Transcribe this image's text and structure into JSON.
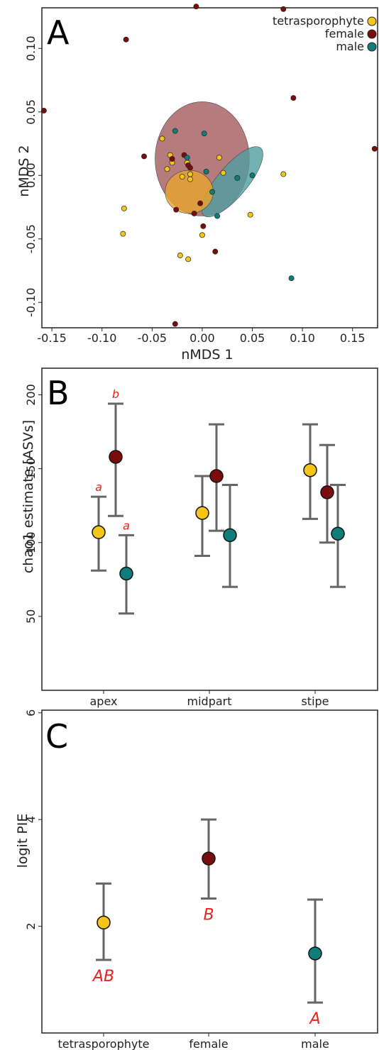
{
  "colors": {
    "tetrasporophyte": "#f5c518",
    "female": "#7a0c0c",
    "male": "#0f7d7a",
    "errorbar": "#666666",
    "signif": "#e8231f"
  },
  "chart_data": [
    {
      "panel": "A",
      "type": "scatter",
      "xlabel": "nMDS 1",
      "ylabel": "nMDS 2",
      "xlim": [
        -0.16,
        0.175
      ],
      "ylim": [
        -0.12,
        0.132
      ],
      "x_ticks": [
        -0.15,
        -0.1,
        -0.05,
        0.0,
        0.05,
        0.1,
        0.15
      ],
      "x_tick_labels": [
        "-0.15",
        "-0.10",
        "-0.05",
        "0.00",
        "0.05",
        "0.10",
        "0.15"
      ],
      "y_ticks": [
        -0.1,
        -0.05,
        0.0,
        0.05,
        0.1
      ],
      "y_tick_labels": [
        "-0.10",
        "-0.05",
        "0.00",
        "0.05",
        "0.10"
      ],
      "legend_position": "top-right",
      "series": [
        {
          "name": "tetrasporophyte",
          "points": [
            [
              -0.078,
              -0.026
            ],
            [
              -0.079,
              -0.046
            ],
            [
              -0.04,
              0.029
            ],
            [
              -0.032,
              0.016
            ],
            [
              -0.03,
              0.01
            ],
            [
              -0.035,
              0.005
            ],
            [
              -0.02,
              -0.001
            ],
            [
              -0.012,
              -0.003
            ],
            [
              -0.015,
              0.01
            ],
            [
              -0.012,
              0.001
            ],
            [
              0.017,
              0.014
            ],
            [
              0.021,
              0.002
            ],
            [
              0.081,
              0.001
            ],
            [
              0.048,
              -0.031
            ],
            [
              -0.022,
              -0.063
            ],
            [
              -0.014,
              -0.066
            ],
            [
              0.0,
              -0.047
            ]
          ]
        },
        {
          "name": "female",
          "points": [
            [
              -0.076,
              0.107
            ],
            [
              -0.158,
              0.051
            ],
            [
              -0.006,
              0.133
            ],
            [
              0.081,
              0.131
            ],
            [
              0.091,
              0.061
            ],
            [
              0.172,
              0.021
            ],
            [
              -0.058,
              0.015
            ],
            [
              -0.018,
              0.016
            ],
            [
              -0.03,
              0.013
            ],
            [
              -0.014,
              0.008
            ],
            [
              -0.012,
              0.006
            ],
            [
              -0.026,
              -0.027
            ],
            [
              -0.008,
              -0.03
            ],
            [
              -0.002,
              -0.022
            ],
            [
              0.001,
              -0.04
            ],
            [
              0.013,
              -0.06
            ],
            [
              -0.027,
              -0.117
            ]
          ]
        },
        {
          "name": "male",
          "points": [
            [
              -0.027,
              0.035
            ],
            [
              0.002,
              0.033
            ],
            [
              -0.015,
              0.014
            ],
            [
              0.004,
              0.003
            ],
            [
              0.035,
              -0.002
            ],
            [
              0.05,
              0.0
            ],
            [
              0.01,
              -0.013
            ],
            [
              0.015,
              -0.032
            ],
            [
              0.089,
              -0.081
            ]
          ]
        }
      ],
      "ellipses": [
        {
          "name": "female",
          "cx": 0.0,
          "cy": 0.013,
          "rx": 0.047,
          "ry": 0.045,
          "angle": 0
        },
        {
          "name": "male",
          "cx": 0.03,
          "cy": -0.005,
          "rx": 0.044,
          "ry": 0.012,
          "angle": -50
        },
        {
          "name": "tetrasporophyte",
          "cx": -0.013,
          "cy": -0.013,
          "rx": 0.024,
          "ry": 0.017,
          "angle": 0
        }
      ]
    },
    {
      "panel": "B",
      "type": "scatter",
      "ylabel": "chao1 estimate [ASVs]",
      "categories": [
        "apex",
        "midpart",
        "stipe"
      ],
      "ylim": [
        0,
        218
      ],
      "y_ticks": [
        50,
        100,
        150,
        200
      ],
      "series": [
        {
          "name": "tetrasporophyte",
          "values": [
            107,
            120,
            149
          ],
          "lower": [
            81,
            91,
            116
          ],
          "upper": [
            131,
            145,
            180
          ]
        },
        {
          "name": "female",
          "values": [
            158,
            145,
            134
          ],
          "lower": [
            118,
            108,
            100
          ],
          "upper": [
            194,
            180,
            166
          ]
        },
        {
          "name": "male",
          "values": [
            79,
            105,
            106
          ],
          "lower": [
            52,
            70,
            70
          ],
          "upper": [
            105,
            139,
            139
          ]
        }
      ],
      "annotations": [
        {
          "category": "apex",
          "series": "tetrasporophyte",
          "text": "a"
        },
        {
          "category": "apex",
          "series": "female",
          "text": "b"
        },
        {
          "category": "apex",
          "series": "male",
          "text": "a"
        }
      ]
    },
    {
      "panel": "C",
      "type": "scatter",
      "ylabel": "logit PIE",
      "categories": [
        "tetrasporophyte",
        "female",
        "male"
      ],
      "ylim": [
        0,
        6.05
      ],
      "y_ticks": [
        2,
        4,
        6
      ],
      "values": [
        2.07,
        3.27,
        1.49
      ],
      "lower": [
        1.37,
        2.52,
        0.57
      ],
      "upper": [
        2.8,
        4.0,
        2.5
      ],
      "letters": [
        "AB",
        "B",
        "A"
      ]
    }
  ]
}
